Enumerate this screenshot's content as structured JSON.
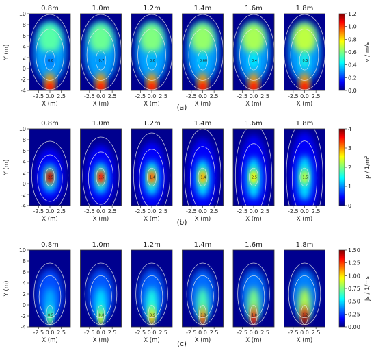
{
  "chart_data": {
    "type": "heatmap",
    "panel_titles": [
      "0.8m",
      "1.0m",
      "1.2m",
      "1.4m",
      "1.6m",
      "1.8m"
    ],
    "xlabel": "X (m)",
    "ylabel": "Y (m)",
    "xlim": [
      -4.5,
      4.5
    ],
    "ylim": [
      -4,
      10
    ],
    "x_ticks": [
      -2.5,
      0.0,
      2.5
    ],
    "y_ticks": [
      -4,
      -2,
      0,
      2,
      4,
      6,
      8,
      10
    ],
    "rows": [
      {
        "label": "(a)",
        "colorbar_label": "v / m/s",
        "range": [
          0,
          1.2
        ],
        "ticks": [
          0.0,
          0.2,
          0.4,
          0.6,
          0.8,
          1.0,
          1.2
        ],
        "contour_labels": [
          "0.6",
          "0.7",
          "0.6",
          "0.60",
          "0.4",
          "0.5"
        ]
      },
      {
        "label": "(b)",
        "colorbar_label": "ρ / 1/m²",
        "range": [
          0,
          4
        ],
        "ticks": [
          0,
          1,
          2,
          3,
          4
        ],
        "contour_labels": [
          "2.5",
          "1.5",
          "1.4",
          "1.4",
          "2.5",
          "1.5"
        ]
      },
      {
        "label": "(c)",
        "colorbar_label": "Js / 1/ms",
        "range": [
          0,
          1.5
        ],
        "ticks": [
          0.0,
          0.25,
          0.5,
          0.75,
          1.0,
          1.25,
          1.5
        ],
        "contour_labels": [
          "0.5",
          "0.8",
          "0.9",
          "1.0",
          "1.0",
          "1.2"
        ]
      }
    ]
  }
}
